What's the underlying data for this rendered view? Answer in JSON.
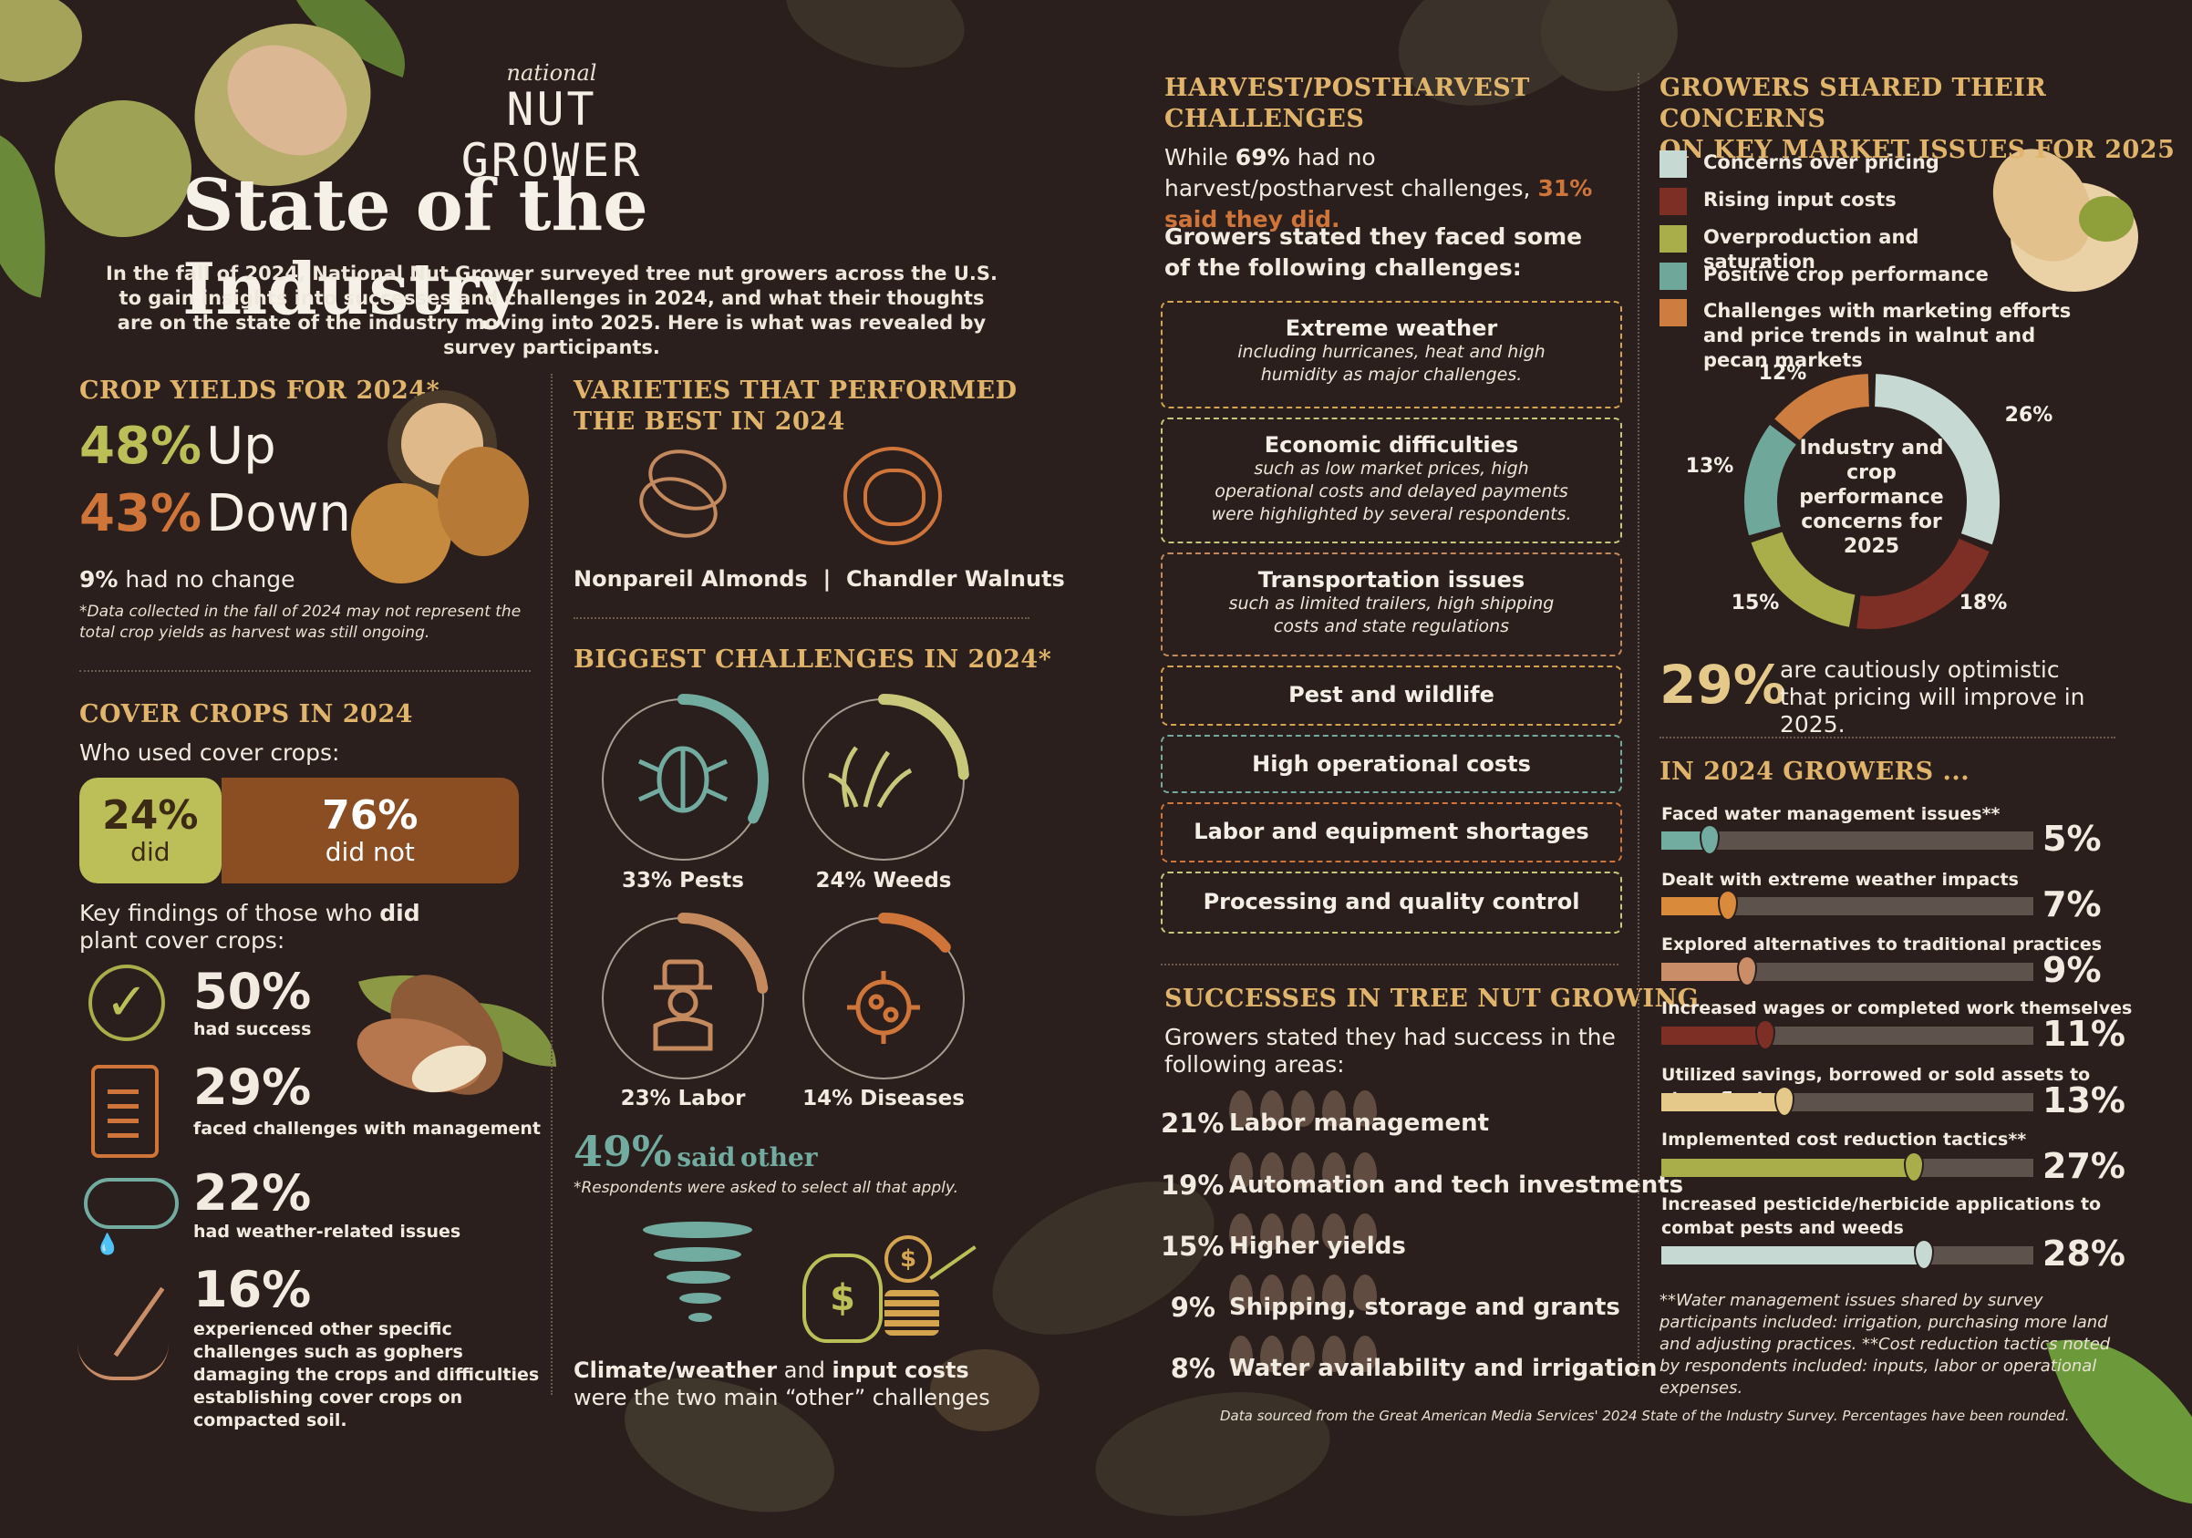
{
  "brand": {
    "top": "national",
    "main": "NUT GROWER"
  },
  "title": "State of the Industry",
  "intro": "In the fall of 2024, National Nut Grower surveyed tree nut growers across the U.S. to gain insights into successes and challenges in 2024, and what their thoughts are on the state of the industry moving into 2025. Here is what was revealed by survey participants.",
  "crop_yields": {
    "title": "CROP YIELDS FOR 2024*",
    "up_pct": "48%",
    "up_label": "Up",
    "down_pct": "43%",
    "down_label": "Down",
    "no_change_pct": "9%",
    "no_change_label": "had no change",
    "note": "*Data collected in the fall of 2024 may not represent the total crop yields as harvest was still ongoing."
  },
  "cover_crops": {
    "title": "COVER CROPS IN 2024",
    "question": "Who used cover crops:",
    "did_pct": "24%",
    "did_label": "did",
    "did_value": 24,
    "not_pct": "76%",
    "not_label": "did not",
    "findings_intro_a": "Key findings of those who ",
    "findings_intro_b": "did",
    "findings_intro_c": " plant cover crops:",
    "findings": [
      {
        "pct": "50%",
        "text": "had success",
        "icon": "checkmark-icon"
      },
      {
        "pct": "29%",
        "text": "faced challenges with management",
        "icon": "clipboard-icon"
      },
      {
        "pct": "22%",
        "text": "had weather-related issues",
        "icon": "rain-cloud-icon"
      },
      {
        "pct": "16%",
        "text_a": "experienced ",
        "text_b": "other",
        "text_c": " specific challenges such as gophers damaging the crops and difficulties establishing cover crops on compacted soil.",
        "icon": "shovel-icon"
      }
    ]
  },
  "varieties": {
    "title_line1": "VARIETIES THAT PERFORMED",
    "title_line2": "THE BEST IN 2024",
    "items": [
      "Nonpareil Almonds",
      "|",
      "Chandler Walnuts"
    ]
  },
  "biggest_challenges": {
    "title": "BIGGEST CHALLENGES IN 2024*",
    "items": [
      {
        "label": "33% Pests",
        "value": 33,
        "color": "#72ab9f",
        "icon": "bug-icon"
      },
      {
        "label": "24% Weeds",
        "value": 24,
        "color": "#c9c77a",
        "icon": "weeds-icon"
      },
      {
        "label": "23% Labor",
        "value": 23,
        "color": "#c48a5e",
        "icon": "farmer-icon"
      },
      {
        "label": "14% Diseases",
        "value": 14,
        "color": "#d0753a",
        "icon": "virus-icon"
      }
    ],
    "other_pct": "49%",
    "other_a": "said",
    "other_b": "other",
    "note": "*Respondents were asked to select all that apply.",
    "footer_a": "Climate/weather",
    "footer_b": " and ",
    "footer_c": "input costs",
    "footer_d": " were the two main “other” challenges"
  },
  "harvest": {
    "title_line1": "HARVEST/POSTHARVEST",
    "title_line2": "CHALLENGES",
    "line_a": "While ",
    "line_b": "69%",
    "line_c": " had no harvest/postharvest challenges, ",
    "line_d": "31% said they did.",
    "intro": "Growers stated they faced some of the following challenges:",
    "boxes": [
      {
        "title": "Extreme weather",
        "desc": "including hurricanes, heat and high humidity as major challenges.",
        "color": "#d5a44f"
      },
      {
        "title": "Economic difficulties",
        "desc": "such as low market prices, high operational costs and delayed payments were highlighted by several respondents.",
        "color": "#c9c77a"
      },
      {
        "title": "Transportation issues",
        "desc": "such as limited trailers, high shipping costs and state regulations",
        "color": "#c48a5e"
      },
      {
        "title": "Pest and wildlife",
        "desc": "",
        "color": "#d5a44f"
      },
      {
        "title": "High operational costs",
        "desc": "",
        "color": "#72ab9f"
      },
      {
        "title": "Labor and equipment shortages",
        "desc": "",
        "color": "#d0753a"
      },
      {
        "title": "Processing and quality control",
        "desc": "",
        "color": "#c9c77a"
      }
    ]
  },
  "successes": {
    "title": "SUCCESSES IN TREE NUT GROWING",
    "intro": "Growers stated they had success in the following areas:",
    "items": [
      {
        "pct": "21%",
        "label": "Labor management",
        "value": 21
      },
      {
        "pct": "19%",
        "label": "Automation and tech investments",
        "value": 19
      },
      {
        "pct": "15%",
        "label": "Higher yields",
        "value": 15
      },
      {
        "pct": "9%",
        "label": "Shipping, storage and grants",
        "value": 9
      },
      {
        "pct": "8%",
        "label": "Water availability and irrigation",
        "value": 8
      }
    ]
  },
  "concerns": {
    "title_line1": "GROWERS SHARED THEIR CONCERNS",
    "title_line2": "ON KEY MARKET ISSUES FOR 2025",
    "legend": [
      {
        "label": "Concerns over pricing",
        "color": "#c6d9d2"
      },
      {
        "label": "Rising input costs",
        "color": "#7d2f26"
      },
      {
        "label": "Overproduction and saturation",
        "color": "#a9ad4a"
      },
      {
        "label": "Positive crop performance",
        "color": "#6fa79b"
      },
      {
        "label": "Challenges with marketing efforts and price trends in walnut and pecan markets",
        "color": "#cd7d3f"
      }
    ],
    "center_text": "Industry and crop performance concerns for 2025",
    "optimistic_pct": "29%",
    "optimistic_text": "are cautiously optimistic that pricing will improve in 2025."
  },
  "chart_data": {
    "type": "pie",
    "title": "Industry and crop performance concerns for 2025",
    "categories": [
      "Concerns over pricing",
      "Rising input costs",
      "Overproduction and saturation",
      "Positive crop performance",
      "Challenges with marketing efforts and price trends in walnut and pecan markets"
    ],
    "values": [
      26,
      18,
      15,
      13,
      12
    ],
    "labels": [
      "26%",
      "18%",
      "15%",
      "13%",
      "12%"
    ],
    "colors": [
      "#c6d9d2",
      "#7d2f26",
      "#a9ad4a",
      "#6fa79b",
      "#cd7d3f"
    ],
    "legend": "top-left"
  },
  "growers_2024": {
    "title": "IN 2024 GROWERS ...",
    "items": [
      {
        "label": "Faced water management issues**",
        "pct": "5%",
        "value": 5,
        "color": "#72ab9f"
      },
      {
        "label": "Dealt with extreme weather impacts",
        "pct": "7%",
        "value": 7,
        "color": "#d98a3a"
      },
      {
        "label": "Explored alternatives to traditional practices",
        "pct": "9%",
        "value": 9,
        "color": "#c98d68"
      },
      {
        "label": "Increased wages or completed work themselves",
        "pct": "11%",
        "value": 11,
        "color": "#7d2f26"
      },
      {
        "label": "Utilized savings, borrowed or sold assets to stay afloat",
        "pct": "13%",
        "value": 13,
        "color": "#e5c98a"
      },
      {
        "label": "Implemented cost reduction tactics**",
        "pct": "27%",
        "value": 27,
        "color": "#a9ad4a"
      },
      {
        "label": "Increased pesticide/herbicide applications to combat pests and weeds",
        "pct": "28%",
        "value": 28,
        "color": "#c6d9d2"
      }
    ],
    "note": "**Water management issues shared by survey participants included: irrigation, purchasing more land and adjusting practices. **Cost reduction tactics noted by respondents included: inputs, labor or operational expenses."
  },
  "source": "Data sourced from the Great American Media Services' 2024 State of the Industry Survey. Percentages have been rounded."
}
